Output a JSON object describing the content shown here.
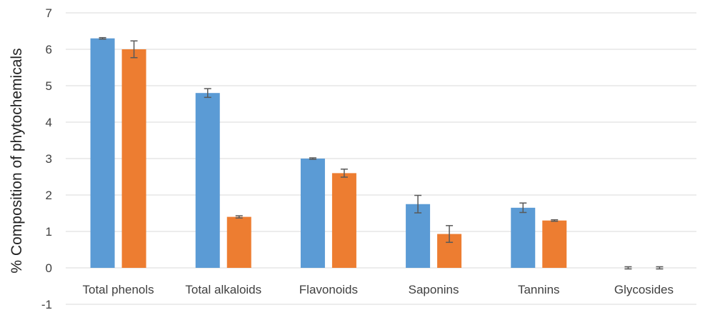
{
  "chart_data": {
    "type": "bar",
    "ylabel": "% Composition of phytochemicals",
    "categories": [
      "Total phenols",
      "Total alkaloids",
      "Flavonoids",
      "Saponins",
      "Tannins",
      "Glycosides"
    ],
    "series": [
      {
        "color": "#5b9bd5",
        "values": [
          6.3,
          4.8,
          3.0,
          1.75,
          1.65,
          0
        ],
        "errors": [
          0.02,
          0.12,
          0.02,
          0.24,
          0.13,
          0.03
        ]
      },
      {
        "color": "#ed7d31",
        "values": [
          6.0,
          1.4,
          2.6,
          0.93,
          1.3,
          0
        ],
        "errors": [
          0.23,
          0.03,
          0.11,
          0.23,
          0.02,
          0.03
        ]
      }
    ],
    "ylim": [
      -1,
      7
    ],
    "yticks": [
      "7",
      "6",
      "5",
      "4",
      "3",
      "2",
      "1",
      "0",
      "-1"
    ],
    "ytick_values": [
      7,
      6,
      5,
      4,
      3,
      2,
      1,
      0,
      -1
    ],
    "grid": true,
    "legend": "none"
  }
}
